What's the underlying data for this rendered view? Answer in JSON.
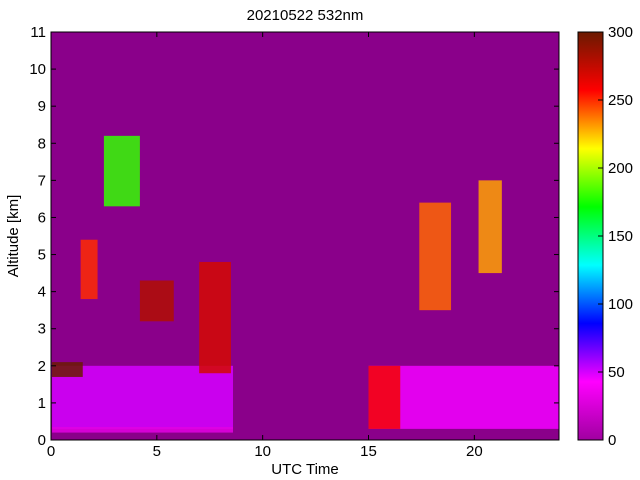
{
  "chart_data": {
    "type": "heatmap",
    "title": "20210522 532nm",
    "xlabel": "UTC Time",
    "ylabel": "Altitude [km]",
    "xlim": [
      0,
      24
    ],
    "ylim": [
      0,
      11
    ],
    "x_ticks": [
      0,
      5,
      10,
      15,
      20
    ],
    "y_ticks": [
      0,
      1,
      2,
      3,
      4,
      5,
      6,
      7,
      8,
      9,
      10,
      11
    ],
    "colorbar": {
      "range": [
        0,
        300
      ],
      "ticks": [
        0,
        50,
        100,
        150,
        200,
        250,
        300
      ],
      "colormap": "prism-like (magenta → blue → cyan → green → yellow → red → dark red)",
      "stops": [
        "#a000a0",
        "#ff00ff",
        "#0000ff",
        "#00ffff",
        "#00ff00",
        "#ffff00",
        "#ff0000",
        "#6b1a00"
      ]
    },
    "background_color": "#8a008a",
    "data_gaps_utc": [
      [
        0.0,
        0.05
      ],
      [
        8.6,
        15.0
      ]
    ],
    "features": [
      {
        "name": "boundary layer",
        "x": [
          0.0,
          8.6
        ],
        "altitude_km": [
          0.3,
          2.0
        ],
        "value": 50
      },
      {
        "name": "boundary layer",
        "x": [
          15.0,
          24.0
        ],
        "altitude_km": [
          0.3,
          2.0
        ],
        "value": 45
      },
      {
        "name": "surface layer",
        "x": [
          0.0,
          8.6
        ],
        "altitude_km": [
          0.2,
          0.35
        ],
        "value": 30
      },
      {
        "name": "cloud layer",
        "x": [
          0.0,
          1.5
        ],
        "altitude_km": [
          1.7,
          2.1
        ],
        "value": 300
      },
      {
        "name": "cloud",
        "x": [
          1.4,
          2.2
        ],
        "altitude_km": [
          3.8,
          5.4
        ],
        "value": 250
      },
      {
        "name": "cloud",
        "x": [
          2.5,
          4.2
        ],
        "altitude_km": [
          6.3,
          8.2
        ],
        "value": 180
      },
      {
        "name": "cloud",
        "x": [
          4.2,
          5.8
        ],
        "altitude_km": [
          3.2,
          4.3
        ],
        "value": 280
      },
      {
        "name": "cloud",
        "x": [
          7.0,
          8.5
        ],
        "altitude_km": [
          1.8,
          4.8
        ],
        "value": 270
      },
      {
        "name": "cloud",
        "x": [
          17.4,
          18.9
        ],
        "altitude_km": [
          3.5,
          6.4
        ],
        "value": 240
      },
      {
        "name": "cloud",
        "x": [
          20.2,
          21.3
        ],
        "altitude_km": [
          4.5,
          7.0
        ],
        "value": 230
      },
      {
        "name": "cloud",
        "x": [
          15.0,
          16.5
        ],
        "altitude_km": [
          0.3,
          2.0
        ],
        "value": 260
      }
    ]
  }
}
